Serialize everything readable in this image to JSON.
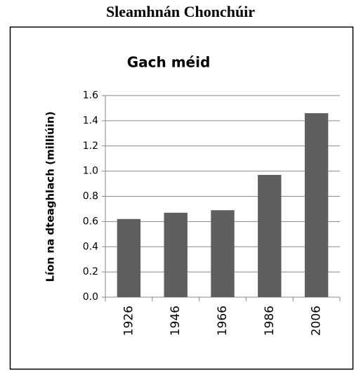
{
  "heading": "Sleamhnán Chonchúir",
  "chart_data": {
    "type": "bar",
    "title": "Gach méid",
    "ylabel": "Líon na dteaghlach  (milliúin)",
    "categories": [
      "1926",
      "1946",
      "1966",
      "1986",
      "2006"
    ],
    "values": [
      0.62,
      0.67,
      0.69,
      0.97,
      1.46
    ],
    "color": "#5f5f5f",
    "ylim": [
      0,
      1.6
    ],
    "yticks": [
      {
        "value": 0,
        "label": "0.0"
      },
      0.2,
      0.4,
      0.6,
      0.8,
      {
        "value": 1,
        "label": "1.0"
      },
      1.2,
      1.4,
      1.6
    ],
    "grid": true
  }
}
